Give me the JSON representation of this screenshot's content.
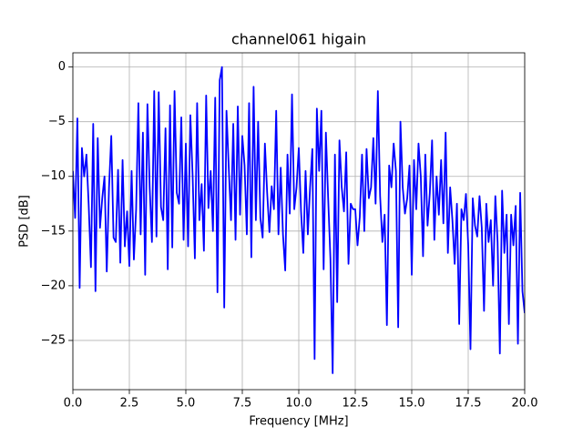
{
  "chart_data": {
    "type": "line",
    "title": "channel061 higain",
    "xlabel": "Frequency [MHz]",
    "ylabel": "PSD [dB]",
    "x": [
      0.0,
      0.1,
      0.2,
      0.3,
      0.4,
      0.5,
      0.6,
      0.7,
      0.8,
      0.9,
      1.0,
      1.1,
      1.2,
      1.3,
      1.4,
      1.5,
      1.6,
      1.7,
      1.8,
      1.9,
      2.0,
      2.1,
      2.2,
      2.3,
      2.4,
      2.5,
      2.6,
      2.7,
      2.8,
      2.9,
      3.0,
      3.1,
      3.2,
      3.3,
      3.4,
      3.5,
      3.6,
      3.7,
      3.8,
      3.9,
      4.0,
      4.1,
      4.2,
      4.3,
      4.4,
      4.5,
      4.6,
      4.7,
      4.8,
      4.9,
      5.0,
      5.1,
      5.2,
      5.3,
      5.4,
      5.5,
      5.6,
      5.7,
      5.8,
      5.9,
      6.0,
      6.1,
      6.2,
      6.3,
      6.4,
      6.5,
      6.6,
      6.7,
      6.8,
      6.9,
      7.0,
      7.1,
      7.2,
      7.3,
      7.4,
      7.5,
      7.6,
      7.7,
      7.8,
      7.9,
      8.0,
      8.1,
      8.2,
      8.3,
      8.4,
      8.5,
      8.6,
      8.7,
      8.8,
      8.9,
      9.0,
      9.1,
      9.2,
      9.3,
      9.4,
      9.5,
      9.6,
      9.7,
      9.8,
      9.9,
      10.0,
      10.1,
      10.2,
      10.3,
      10.4,
      10.5,
      10.6,
      10.7,
      10.8,
      10.9,
      11.0,
      11.1,
      11.2,
      11.3,
      11.4,
      11.5,
      11.6,
      11.7,
      11.8,
      11.9,
      12.0,
      12.1,
      12.2,
      12.3,
      12.4,
      12.5,
      12.6,
      12.7,
      12.8,
      12.9,
      13.0,
      13.1,
      13.2,
      13.3,
      13.4,
      13.5,
      13.6,
      13.7,
      13.8,
      13.9,
      14.0,
      14.1,
      14.2,
      14.3,
      14.4,
      14.5,
      14.6,
      14.7,
      14.8,
      14.9,
      15.0,
      15.1,
      15.2,
      15.3,
      15.4,
      15.5,
      15.6,
      15.7,
      15.8,
      15.9,
      16.0,
      16.1,
      16.2,
      16.3,
      16.4,
      16.5,
      16.6,
      16.7,
      16.8,
      16.9,
      17.0,
      17.1,
      17.2,
      17.3,
      17.4,
      17.5,
      17.6,
      17.7,
      17.8,
      17.9,
      18.0,
      18.1,
      18.2,
      18.3,
      18.4,
      18.5,
      18.6,
      18.7,
      18.8,
      18.9,
      19.0,
      19.1,
      19.2,
      19.3,
      19.4,
      19.5,
      19.6,
      19.7,
      19.8,
      19.9,
      20.0
    ],
    "series": [
      {
        "color": "#0000ff",
        "values": [
          -9.5,
          -13.8,
          -4.7,
          -20.2,
          -7.4,
          -10,
          -8,
          -12.6,
          -18.3,
          -5.2,
          -20.5,
          -6.5,
          -14.7,
          -12,
          -10,
          -18.7,
          -11,
          -6.3,
          -15.6,
          -16,
          -9.4,
          -17.9,
          -8.5,
          -16.4,
          -13.2,
          -18.2,
          -9.5,
          -17.6,
          -13,
          -3.3,
          -15.3,
          -6,
          -19,
          -3.4,
          -11,
          -16,
          -2.2,
          -15.5,
          -2.3,
          -12.8,
          -14,
          -5.6,
          -18.5,
          -3.5,
          -16.5,
          -2.2,
          -11.5,
          -12.5,
          -4.6,
          -15.8,
          -7,
          -16.4,
          -4.4,
          -9.9,
          -17.5,
          -3.3,
          -14,
          -10.7,
          -16.8,
          -2.6,
          -12.9,
          -9.5,
          -15,
          -2.8,
          -20.6,
          -1.2,
          0,
          -22,
          -4,
          -9.2,
          -14,
          -5.2,
          -15.8,
          -3.6,
          -13.5,
          -6.3,
          -9,
          -15.3,
          -3.3,
          -17.4,
          -1.8,
          -14,
          -5,
          -13.8,
          -15.6,
          -7,
          -11.5,
          -15.1,
          -10.9,
          -13,
          -4,
          -15.3,
          -9.2,
          -15.3,
          -18.6,
          -8,
          -13.4,
          -2.5,
          -13,
          -11,
          -7.4,
          -13.2,
          -17,
          -9.5,
          -15.3,
          -11,
          -7.5,
          -26.7,
          -3.8,
          -9.5,
          -4,
          -18.5,
          -6,
          -12,
          -17.5,
          -28,
          -8,
          -21.5,
          -6.7,
          -11,
          -13.2,
          -7.8,
          -18,
          -12.5,
          -13,
          -13,
          -16.3,
          -13.7,
          -8,
          -15,
          -7.5,
          -12,
          -11,
          -6.5,
          -12.5,
          -2.2,
          -11.8,
          -16,
          -13.5,
          -23.6,
          -9,
          -11,
          -7,
          -9.5,
          -23.8,
          -5,
          -11,
          -13.4,
          -12,
          -9,
          -19,
          -8.5,
          -13,
          -7,
          -10,
          -17.3,
          -8,
          -14.5,
          -11.5,
          -6.7,
          -15.8,
          -10,
          -13.5,
          -8.5,
          -14.3,
          -6,
          -17,
          -11,
          -14,
          -18,
          -12.5,
          -23.5,
          -13,
          -14,
          -11.6,
          -16.3,
          -25.8,
          -12,
          -14.5,
          -15.5,
          -11.8,
          -14.7,
          -22.3,
          -12.5,
          -16,
          -14,
          -20,
          -11.8,
          -16,
          -26.2,
          -11.3,
          -17,
          -13.5,
          -23.5,
          -13.5,
          -16.3,
          -12.7,
          -25.3,
          -11.5,
          -20.5,
          -22.5
        ]
      }
    ],
    "xlim": [
      0,
      20
    ],
    "ylim": [
      -29.5,
      1.3
    ],
    "xticks": [
      {
        "value": 0,
        "label": "0.0"
      },
      2.5,
      {
        "value": 5,
        "label": "5.0"
      },
      7.5,
      {
        "value": 10,
        "label": "10.0"
      },
      12.5,
      {
        "value": 15,
        "label": "15.0"
      },
      17.5,
      {
        "value": 20,
        "label": "20.0"
      }
    ],
    "yticks": [
      {
        "value": -25,
        "label": "−25"
      },
      {
        "value": -20,
        "label": "−20"
      },
      {
        "value": -15,
        "label": "−15"
      },
      {
        "value": -10,
        "label": "−10"
      },
      {
        "value": -5,
        "label": "−5"
      },
      0
    ],
    "grid": true
  }
}
